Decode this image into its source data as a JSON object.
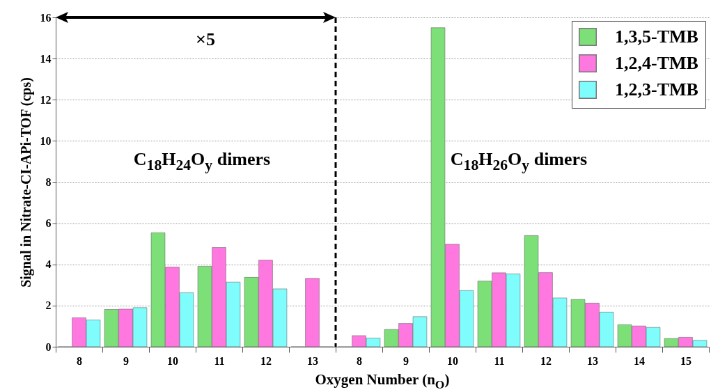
{
  "chart_data": {
    "type": "bar",
    "categories": [
      "8",
      "9",
      "10",
      "11",
      "12",
      "13",
      "8",
      "9",
      "10",
      "11",
      "12",
      "13",
      "14",
      "15"
    ],
    "series": [
      {
        "name": "1,3,5-TMB",
        "color": "#7ddf78",
        "values": [
          0,
          1.81,
          5.54,
          3.91,
          3.37,
          0,
          0,
          0.84,
          15.5,
          3.19,
          5.4,
          2.3,
          1.07,
          0.4
        ]
      },
      {
        "name": "1,2,4-TMB",
        "color": "#ff78e0",
        "values": [
          1.41,
          1.83,
          3.87,
          4.82,
          4.21,
          3.32,
          0.54,
          1.13,
          4.98,
          3.59,
          3.6,
          2.12,
          1.01,
          0.46
        ]
      },
      {
        "name": "1,2,3-TMB",
        "color": "#7ffcfc",
        "values": [
          1.3,
          1.9,
          2.62,
          3.14,
          2.81,
          0,
          0.42,
          1.46,
          2.73,
          3.54,
          2.37,
          1.68,
          0.94,
          0.31
        ]
      }
    ],
    "xlabel": "Oxygen Number (n$_{O}$)",
    "ylabel": "Signal in Nitrate-CI-APi-TOF (cps)",
    "ylim": [
      0,
      16
    ],
    "yticks": [
      0,
      2,
      4,
      6,
      8,
      10,
      12,
      14,
      16
    ],
    "grid": "y",
    "legend": "top right",
    "annotations": [
      "×5",
      "C$_{18}$H$_{24}$O$_{y}$ dimers",
      "C$_{18}$H$_{26}$O$_{y}$ dimers"
    ]
  }
}
